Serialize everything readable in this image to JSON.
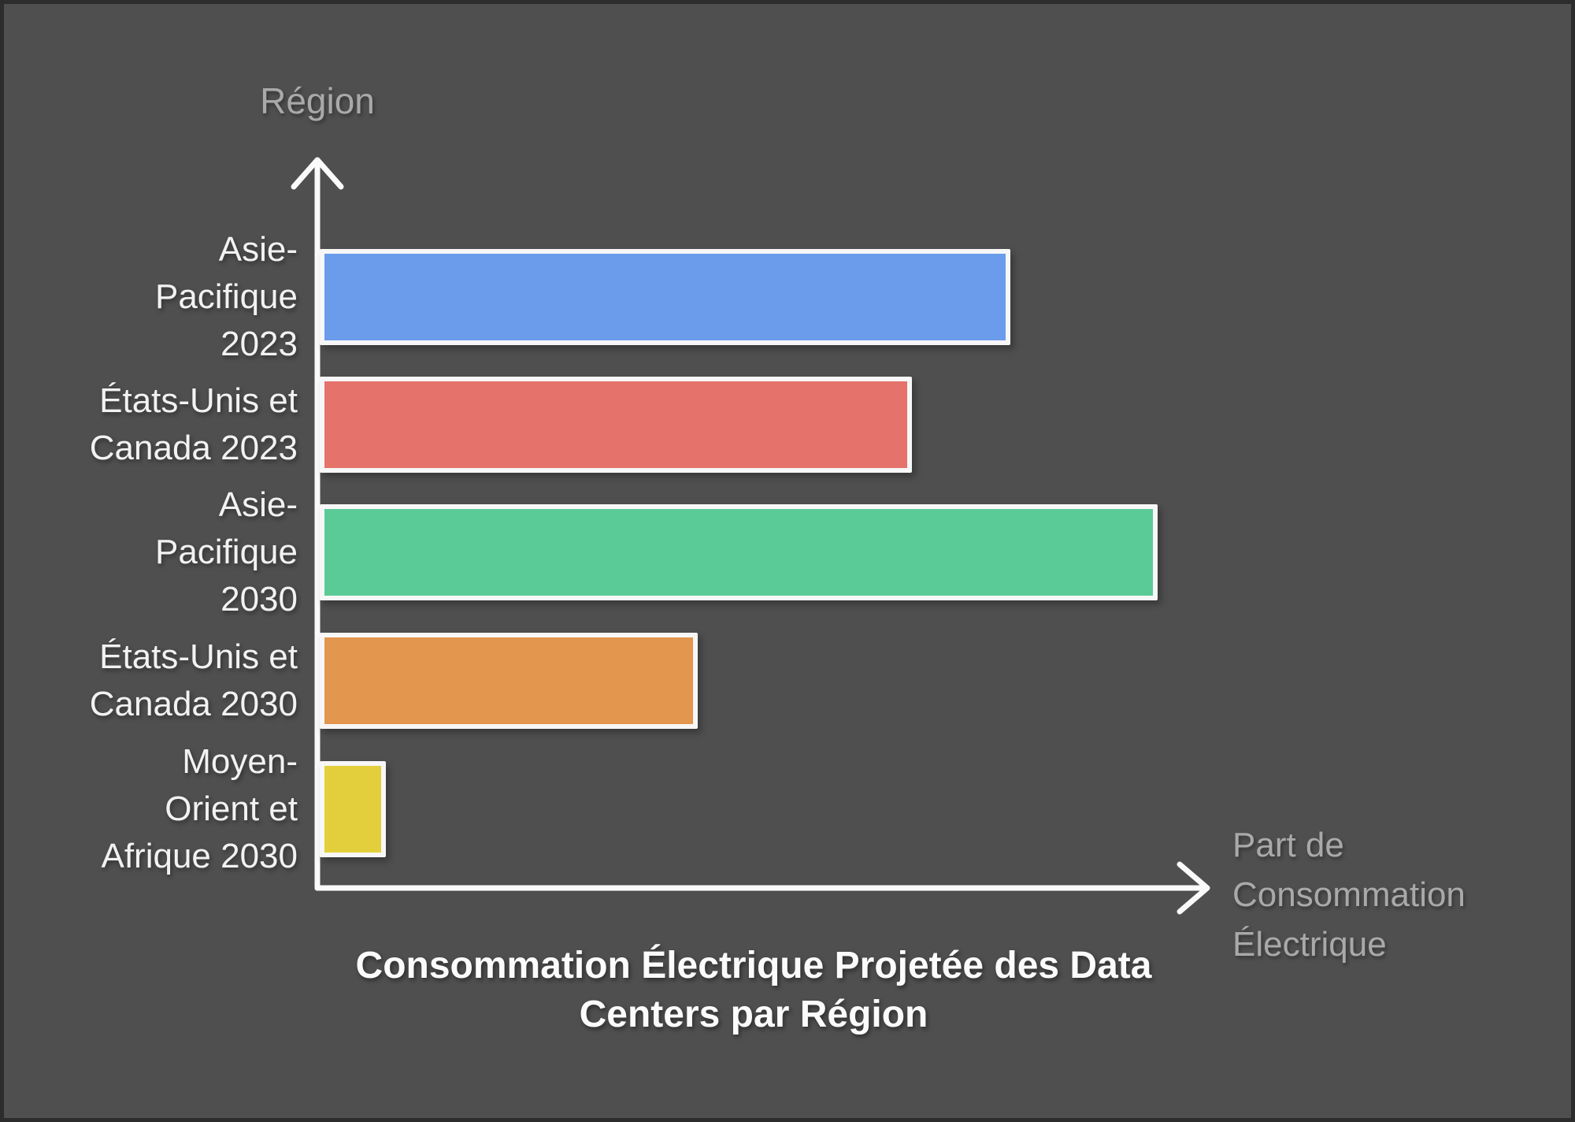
{
  "chart": {
    "title_lines": [
      "Consommation Électrique Projetée des Data",
      "Centers par Région"
    ],
    "y_axis_label": "Région",
    "x_axis_label_lines": [
      "Part de",
      "Consommation",
      "Électrique"
    ]
  },
  "chart_data": {
    "type": "bar",
    "orientation": "horizontal",
    "title": "Consommation Électrique Projetée des Data Centers par Région",
    "xlabel": "Part de Consommation Électrique",
    "ylabel": "Région",
    "axis_numeric_labels": false,
    "grid": false,
    "legend": false,
    "value_scale": "percent_of_longest_bar (no numeric axis shown in image; lengths estimated from pixels)",
    "categories": [
      "Asie-Pacifique 2023",
      "États-Unis et Canada 2023",
      "Asie-Pacifique 2030",
      "États-Unis et Canada 2030",
      "Moyen-Orient et Afrique 2030"
    ],
    "values": [
      82.4,
      70.7,
      100,
      45.1,
      7.9
    ],
    "bar_colors": [
      "#6b9ceb",
      "#e5726b",
      "#5acb96",
      "#e2964e",
      "#e3cf3c"
    ],
    "bars": [
      {
        "label_lines": [
          "Asie-",
          "Pacifique",
          "2023"
        ],
        "color": "#6b9ceb",
        "length_pct": 82.4
      },
      {
        "label_lines": [
          "États-Unis et",
          "Canada 2023"
        ],
        "color": "#e5726b",
        "length_pct": 70.7
      },
      {
        "label_lines": [
          "Asie-",
          "Pacifique",
          "2030"
        ],
        "color": "#5acb96",
        "length_pct": 100
      },
      {
        "label_lines": [
          "États-Unis et",
          "Canada 2030"
        ],
        "color": "#e2964e",
        "length_pct": 45.1
      },
      {
        "label_lines": [
          "Moyen-",
          "Orient et",
          "Afrique 2030"
        ],
        "color": "#e3cf3c",
        "length_pct": 7.9
      }
    ]
  },
  "colors": {
    "background": "#4f4f4f",
    "frame_border": "#2c2c2c",
    "axis": "#fafafa",
    "axis_label_text": "#a9a9a9",
    "bar_label_text": "#f2f2f2",
    "bar_border": "#f7f7f7",
    "title_text": "#fbfbfb"
  }
}
